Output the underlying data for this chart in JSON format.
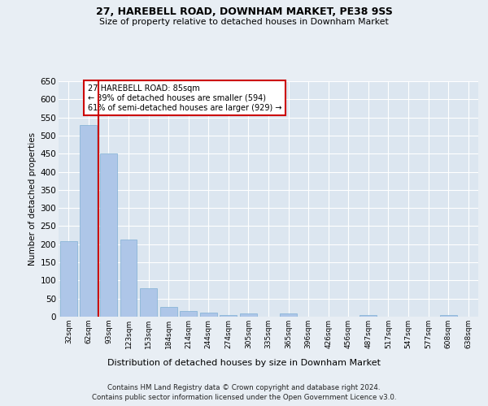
{
  "title1": "27, HAREBELL ROAD, DOWNHAM MARKET, PE38 9SS",
  "title2": "Size of property relative to detached houses in Downham Market",
  "xlabel": "Distribution of detached houses by size in Downham Market",
  "ylabel": "Number of detached properties",
  "footer1": "Contains HM Land Registry data © Crown copyright and database right 2024.",
  "footer2": "Contains public sector information licensed under the Open Government Licence v3.0.",
  "annotation_line1": "27 HAREBELL ROAD: 85sqm",
  "annotation_line2": "← 39% of detached houses are smaller (594)",
  "annotation_line3": "61% of semi-detached houses are larger (929) →",
  "bar_labels": [
    "32sqm",
    "62sqm",
    "93sqm",
    "123sqm",
    "153sqm",
    "184sqm",
    "214sqm",
    "244sqm",
    "274sqm",
    "305sqm",
    "335sqm",
    "365sqm",
    "396sqm",
    "426sqm",
    "456sqm",
    "487sqm",
    "517sqm",
    "547sqm",
    "577sqm",
    "608sqm",
    "638sqm"
  ],
  "bar_values": [
    208,
    530,
    450,
    212,
    78,
    26,
    15,
    12,
    5,
    8,
    0,
    8,
    0,
    0,
    0,
    5,
    0,
    0,
    0,
    5,
    0
  ],
  "bar_color": "#aec6e8",
  "bar_edge_color": "#7fafd4",
  "redline_x": 1.5,
  "ylim": [
    0,
    650
  ],
  "yticks": [
    0,
    50,
    100,
    150,
    200,
    250,
    300,
    350,
    400,
    450,
    500,
    550,
    600,
    650
  ],
  "annotation_box_color": "#ffffff",
  "annotation_box_edge": "#cc0000",
  "redline_color": "#cc0000",
  "background_color": "#e8eef4",
  "plot_bg_color": "#dce6f0"
}
